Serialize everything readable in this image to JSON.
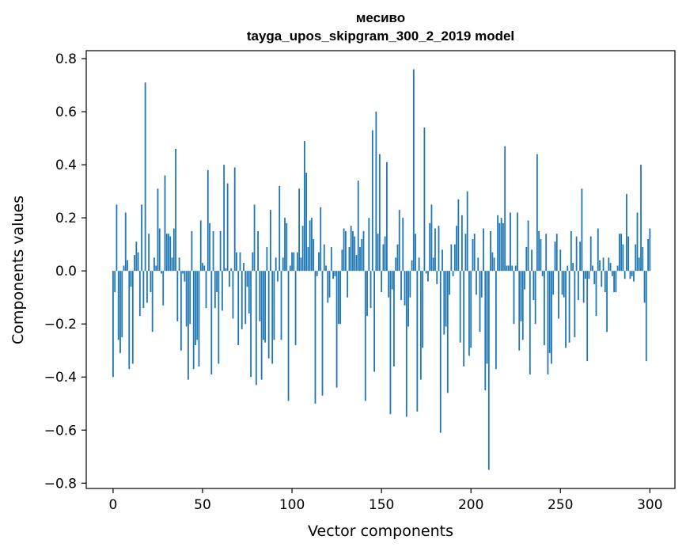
{
  "chart_data": {
    "type": "bar",
    "title_line1": "месиво",
    "title_line2": "tayga_upos_skipgram_300_2_2019 model",
    "xlabel": "Vector components",
    "ylabel": "Components values",
    "xlim": [
      -15,
      314
    ],
    "ylim": [
      -0.82,
      0.83
    ],
    "xticks": [
      0,
      50,
      100,
      150,
      200,
      250,
      300
    ],
    "xtick_labels": [
      "0",
      "50",
      "100",
      "150",
      "200",
      "250",
      "300"
    ],
    "yticks": [
      0.8,
      0.6,
      0.4,
      0.2,
      0.0,
      -0.2,
      -0.4,
      -0.6,
      -0.8
    ],
    "ytick_labels": [
      "0.8",
      "0.6",
      "0.4",
      "0.2",
      "0.0",
      "−0.2",
      "−0.4",
      "−0.6",
      "−0.8"
    ],
    "bar_color": "#1f77b4",
    "values": [
      -0.4,
      -0.08,
      0.25,
      -0.26,
      -0.31,
      -0.25,
      0.02,
      0.22,
      0.04,
      -0.37,
      -0.06,
      -0.35,
      0.06,
      0.11,
      0.07,
      -0.17,
      0.25,
      -0.14,
      0.71,
      -0.12,
      0.14,
      -0.08,
      -0.23,
      0.05,
      0.02,
      0.31,
      0.16,
      -0.01,
      -0.13,
      0.36,
      0.14,
      0.14,
      0.13,
      0.05,
      0.16,
      0.46,
      -0.19,
      0.05,
      -0.3,
      -0.01,
      -0.04,
      -0.21,
      -0.41,
      -0.2,
      0.15,
      -0.37,
      -0.28,
      -0.26,
      -0.36,
      0.19,
      0.03,
      0.02,
      -0.14,
      0.38,
      0.18,
      -0.39,
      0.15,
      -0.14,
      -0.08,
      -0.35,
      0.15,
      -0.15,
      0.4,
      0.01,
      0.33,
      -0.06,
      0.01,
      -0.18,
      0.39,
      0.07,
      -0.28,
      0.07,
      -0.22,
      0.03,
      -0.2,
      -0.06,
      -0.16,
      -0.4,
      0.07,
      0.25,
      -0.43,
      0.15,
      -0.19,
      -0.41,
      -0.26,
      -0.27,
      0.09,
      -0.33,
      0.23,
      -0.35,
      -0.26,
      0.05,
      -0.04,
      0.32,
      -0.26,
      0.05,
      0.2,
      0.18,
      -0.49,
      0.02,
      0.07,
      0.07,
      -0.28,
      0.07,
      0.31,
      0.05,
      0.17,
      0.49,
      0.37,
      0.09,
      0.19,
      0.2,
      0.12,
      -0.5,
      -0.02,
      0.07,
      0.24,
      -0.47,
      0.1,
      0.02,
      -0.12,
      -0.1,
      0.09,
      -0.03,
      -0.02,
      -0.44,
      -0.2,
      -0.2,
      0.08,
      0.16,
      0.15,
      -0.1,
      0.09,
      0.17,
      0.15,
      0.13,
      0.06,
      0.34,
      0.09,
      0.12,
      0.15,
      -0.49,
      -0.17,
      0.2,
      -0.14,
      0.53,
      -0.38,
      0.6,
      0.14,
      0.44,
      -0.08,
      0.1,
      0.13,
      0.41,
      -0.1,
      -0.54,
      -0.07,
      -0.36,
      0.05,
      0.1,
      0.23,
      -0.11,
      0.2,
      -0.13,
      -0.55,
      -0.21,
      -0.1,
      0.04,
      0.76,
      0.14,
      -0.53,
      0.05,
      -0.41,
      -0.29,
      0.54,
      -0.01,
      -0.04,
      0.18,
      0.25,
      0.05,
      0.16,
      -0.05,
      0.17,
      -0.61,
      0.08,
      -0.24,
      -0.21,
      -0.46,
      -0.09,
      0.1,
      -0.02,
      0.1,
      0.17,
      0.27,
      -0.27,
      0.21,
      -0.36,
      0.14,
      0.3,
      -0.32,
      -0.29,
      0.12,
      0.14,
      -0.09,
      0.05,
      -0.23,
      -0.1,
      0.16,
      -0.45,
      -0.35,
      -0.75,
      0.15,
      0.07,
      0.05,
      -0.37,
      0.21,
      0.18,
      0.2,
      0.18,
      0.47,
      0.02,
      0.02,
      0.22,
      0.02,
      -0.2,
      0.02,
      0.22,
      -0.3,
      -0.19,
      -0.26,
      -0.07,
      0.09,
      0.19,
      -0.39,
      0.08,
      -0.11,
      -0.2,
      0.44,
      0.15,
      0.12,
      -0.02,
      -0.28,
      0.14,
      -0.39,
      -0.31,
      -0.35,
      -0.09,
      0.11,
      0.14,
      -0.18,
      0.08,
      -0.09,
      -0.1,
      -0.29,
      0.02,
      -0.27,
      0.15,
      0.03,
      -0.25,
      0.13,
      -0.11,
      0.11,
      0.31,
      -0.12,
      -0.03,
      -0.34,
      -0.03,
      0.13,
      0.02,
      -0.05,
      -0.17,
      0.16,
      0.04,
      -0.06,
      0.05,
      -0.08,
      -0.23,
      0.05,
      0.03,
      -0.02,
      -0.08,
      -0.08,
      0.02,
      0.14,
      0.14,
      0.1,
      -0.03,
      0.29,
      0.13,
      -0.03,
      -0.02,
      -0.04,
      0.1,
      0.22,
      0.05,
      0.4,
      0.09,
      -0.12,
      -0.34,
      0.12,
      0.16
    ]
  }
}
